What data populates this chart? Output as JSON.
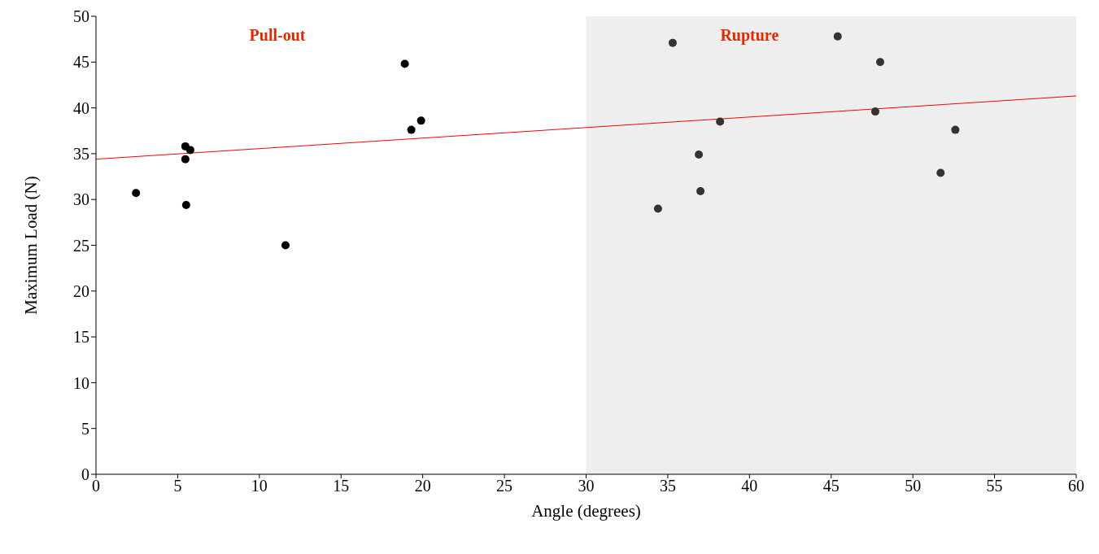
{
  "chart_data": {
    "type": "scatter",
    "xlabel": "Angle (degrees)",
    "ylabel": "Maximum Load (N)",
    "xlim": [
      0,
      60
    ],
    "xticks": [
      0,
      5,
      10,
      15,
      20,
      25,
      30,
      35,
      40,
      45,
      50,
      55,
      60
    ],
    "ylim": [
      0,
      50
    ],
    "yticks": [
      0,
      5,
      10,
      15,
      20,
      25,
      30,
      35,
      40,
      45,
      50
    ],
    "grid": false,
    "marker": "circle",
    "series": [
      {
        "color": "#000000",
        "x": [
          2.45,
          5.47,
          5.77,
          5.47,
          5.52,
          11.6,
          18.9,
          19.3,
          19.9
        ],
        "values": [
          30.7,
          35.8,
          35.4,
          34.4,
          29.4,
          25.0,
          44.8,
          37.6,
          38.6
        ]
      },
      {
        "color": "#333333",
        "x": [
          34.4,
          35.3,
          36.9,
          37.0,
          38.2,
          45.4,
          48.0,
          47.7,
          51.7,
          52.6
        ],
        "values": [
          29.0,
          47.1,
          34.9,
          30.9,
          38.5,
          47.8,
          45.0,
          39.6,
          32.9,
          37.6
        ]
      },
      {
        "type": "line",
        "color": "#ff0000",
        "x": [
          0,
          60
        ],
        "values": [
          34.4,
          41.3
        ],
        "marker": "none"
      }
    ],
    "bands": [
      {
        "axis": "x",
        "from": 30,
        "to": 60,
        "color": "#eeeeee",
        "label": "Rupture"
      }
    ],
    "annotations": [
      "Pull-out"
    ]
  }
}
